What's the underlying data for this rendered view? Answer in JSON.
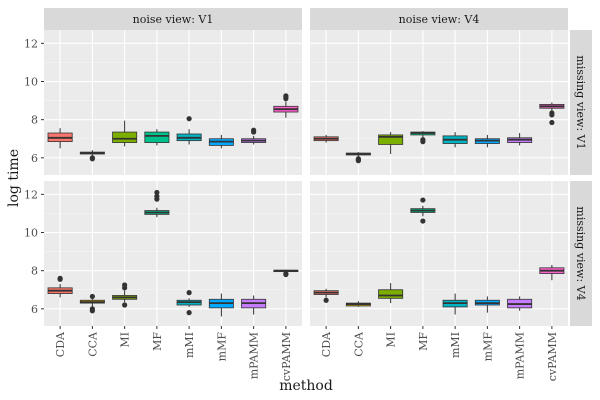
{
  "chart_data": {
    "type": "boxplot",
    "xlabel": "method",
    "ylabel": "log time",
    "ylim": [
      5.1,
      12.7
    ],
    "yticks": [
      6,
      8,
      10,
      12
    ],
    "categories": [
      "CDA",
      "CCA",
      "MI",
      "MF",
      "mMI",
      "mMF",
      "mPAMM",
      "cvPAMM"
    ],
    "colors": {
      "CDA": "#f8766d",
      "CCA": "#c49a00",
      "MI": "#7cae00",
      "MF": "#00c08b",
      "mMI": "#00b4c4",
      "mMF": "#00a9ff",
      "mPAMM": "#c77cff",
      "cvPAMM": "#ff61cc"
    },
    "column_strips": [
      "noise view: V1",
      "noise view: V4"
    ],
    "row_strips": [
      "missing view: V1",
      "missing view: V4"
    ],
    "panels": [
      {
        "row": 0,
        "col": 0,
        "boxes": [
          {
            "method": "CDA",
            "min": 6.5,
            "q1": 6.85,
            "median": 7.05,
            "q3": 7.3,
            "max": 7.55,
            "outliers": []
          },
          {
            "method": "CCA",
            "min": 6.1,
            "q1": 6.2,
            "median": 6.25,
            "q3": 6.3,
            "max": 6.4,
            "outliers": [
              6.0,
              5.95
            ]
          },
          {
            "method": "MI",
            "min": 6.6,
            "q1": 6.8,
            "median": 7.0,
            "q3": 7.35,
            "max": 7.95,
            "outliers": []
          },
          {
            "method": "MF",
            "min": 6.65,
            "q1": 6.8,
            "median": 7.15,
            "q3": 7.35,
            "max": 7.5,
            "outliers": []
          },
          {
            "method": "mMI",
            "min": 6.7,
            "q1": 6.9,
            "median": 7.05,
            "q3": 7.25,
            "max": 7.5,
            "outliers": [
              8.05
            ]
          },
          {
            "method": "mMF",
            "min": 6.5,
            "q1": 6.65,
            "median": 6.85,
            "q3": 7.0,
            "max": 7.2,
            "outliers": []
          },
          {
            "method": "mPAMM",
            "min": 6.7,
            "q1": 6.8,
            "median": 6.9,
            "q3": 7.0,
            "max": 7.15,
            "outliers": [
              7.35,
              7.45
            ]
          },
          {
            "method": "cvPAMM",
            "min": 8.1,
            "q1": 8.4,
            "median": 8.55,
            "q3": 8.7,
            "max": 8.95,
            "outliers": [
              9.1,
              9.2,
              9.25
            ]
          }
        ]
      },
      {
        "row": 0,
        "col": 1,
        "boxes": [
          {
            "method": "CDA",
            "min": 6.8,
            "q1": 6.9,
            "median": 7.0,
            "q3": 7.1,
            "max": 7.2,
            "outliers": []
          },
          {
            "method": "CCA",
            "min": 6.05,
            "q1": 6.15,
            "median": 6.2,
            "q3": 6.25,
            "max": 6.3,
            "outliers": [
              5.95,
              5.9,
              5.85
            ]
          },
          {
            "method": "MI",
            "min": 6.2,
            "q1": 6.7,
            "median": 7.1,
            "q3": 7.2,
            "max": 7.35,
            "outliers": []
          },
          {
            "method": "MF",
            "min": 7.05,
            "q1": 7.2,
            "median": 7.3,
            "q3": 7.35,
            "max": 7.4,
            "outliers": [
              6.95,
              6.85
            ]
          },
          {
            "method": "mMI",
            "min": 6.55,
            "q1": 6.75,
            "median": 6.95,
            "q3": 7.15,
            "max": 7.35,
            "outliers": []
          },
          {
            "method": "mMF",
            "min": 6.55,
            "q1": 6.75,
            "median": 6.9,
            "q3": 7.0,
            "max": 7.2,
            "outliers": []
          },
          {
            "method": "mPAMM",
            "min": 6.65,
            "q1": 6.8,
            "median": 6.95,
            "q3": 7.05,
            "max": 7.3,
            "outliers": []
          },
          {
            "method": "cvPAMM",
            "min": 8.4,
            "q1": 8.6,
            "median": 8.7,
            "q3": 8.8,
            "max": 8.9,
            "outliers": [
              8.35,
              8.25,
              7.85
            ]
          }
        ]
      },
      {
        "row": 1,
        "col": 0,
        "boxes": [
          {
            "method": "CDA",
            "min": 6.6,
            "q1": 6.8,
            "median": 6.95,
            "q3": 7.1,
            "max": 7.3,
            "outliers": [
              7.55,
              7.6
            ]
          },
          {
            "method": "CCA",
            "min": 6.1,
            "q1": 6.3,
            "median": 6.35,
            "q3": 6.45,
            "max": 6.55,
            "outliers": [
              6.65,
              6.0,
              5.9
            ]
          },
          {
            "method": "MI",
            "min": 6.35,
            "q1": 6.5,
            "median": 6.6,
            "q3": 6.7,
            "max": 6.95,
            "outliers": [
              7.1,
              7.25,
              6.2
            ]
          },
          {
            "method": "MF",
            "min": 10.8,
            "q1": 10.95,
            "median": 11.05,
            "q3": 11.15,
            "max": 11.3,
            "outliers": [
              11.75,
              11.9,
              12.1
            ]
          },
          {
            "method": "mMI",
            "min": 6.1,
            "q1": 6.2,
            "median": 6.35,
            "q3": 6.45,
            "max": 6.55,
            "outliers": [
              6.85,
              5.8
            ]
          },
          {
            "method": "mMF",
            "min": 5.6,
            "q1": 6.05,
            "median": 6.3,
            "q3": 6.5,
            "max": 6.8,
            "outliers": []
          },
          {
            "method": "mPAMM",
            "min": 5.7,
            "q1": 6.05,
            "median": 6.3,
            "q3": 6.5,
            "max": 6.7,
            "outliers": []
          },
          {
            "method": "cvPAMM",
            "min": 7.9,
            "q1": 7.95,
            "median": 8.0,
            "q3": 8.02,
            "max": 8.05,
            "outliers": [
              7.85,
              7.8
            ]
          }
        ]
      },
      {
        "row": 1,
        "col": 1,
        "boxes": [
          {
            "method": "CDA",
            "min": 6.6,
            "q1": 6.75,
            "median": 6.85,
            "q3": 6.95,
            "max": 7.05,
            "outliers": [
              6.45
            ]
          },
          {
            "method": "CCA",
            "min": 6.1,
            "q1": 6.15,
            "median": 6.25,
            "q3": 6.3,
            "max": 6.4,
            "outliers": []
          },
          {
            "method": "MI",
            "min": 6.3,
            "q1": 6.55,
            "median": 6.7,
            "q3": 7.0,
            "max": 7.35,
            "outliers": []
          },
          {
            "method": "MF",
            "min": 10.85,
            "q1": 11.05,
            "median": 11.15,
            "q3": 11.25,
            "max": 11.4,
            "outliers": [
              11.7,
              10.6
            ]
          },
          {
            "method": "mMI",
            "min": 5.7,
            "q1": 6.1,
            "median": 6.3,
            "q3": 6.45,
            "max": 6.8,
            "outliers": []
          },
          {
            "method": "mMF",
            "min": 5.8,
            "q1": 6.2,
            "median": 6.3,
            "q3": 6.45,
            "max": 6.65,
            "outliers": []
          },
          {
            "method": "mPAMM",
            "min": 5.9,
            "q1": 6.05,
            "median": 6.25,
            "q3": 6.5,
            "max": 6.65,
            "outliers": []
          },
          {
            "method": "cvPAMM",
            "min": 7.5,
            "q1": 7.85,
            "median": 8.0,
            "q3": 8.15,
            "max": 8.3,
            "outliers": []
          }
        ]
      }
    ]
  }
}
